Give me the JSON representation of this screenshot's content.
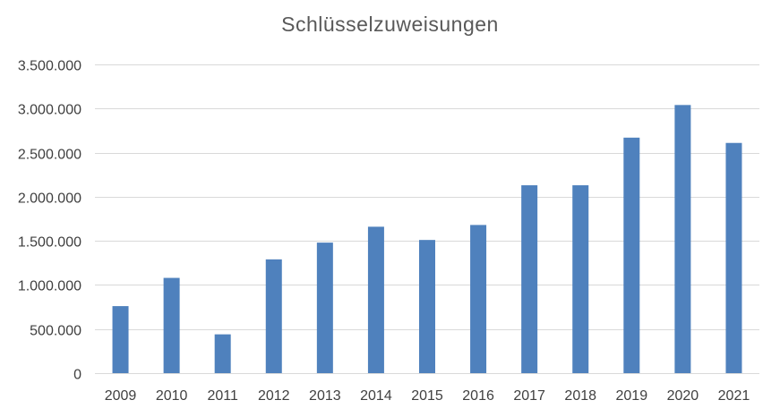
{
  "chart_data": {
    "type": "bar",
    "title": "Schlüsselzuweisungen",
    "categories": [
      "2009",
      "2010",
      "2011",
      "2012",
      "2013",
      "2014",
      "2015",
      "2016",
      "2017",
      "2018",
      "2019",
      "2020",
      "2021"
    ],
    "values": [
      760000,
      1080000,
      440000,
      1290000,
      1480000,
      1660000,
      1510000,
      1680000,
      2130000,
      2130000,
      2670000,
      3040000,
      2610000
    ],
    "ylim": [
      0,
      3500000
    ],
    "y_ticks": [
      {
        "value": 0,
        "label": "0"
      },
      {
        "value": 500000,
        "label": "500.000"
      },
      {
        "value": 1000000,
        "label": "1.000.000"
      },
      {
        "value": 1500000,
        "label": "1.500.000"
      },
      {
        "value": 2000000,
        "label": "2.000.000"
      },
      {
        "value": 2500000,
        "label": "2.500.000"
      },
      {
        "value": 3000000,
        "label": "3.000.000"
      },
      {
        "value": 3500000,
        "label": "3.500.000"
      }
    ],
    "grid": true,
    "legend": "none",
    "colors": {
      "bar": "#4f81bd",
      "grid": "#d9d9d9",
      "text": "#404040",
      "title": "#595959"
    }
  }
}
